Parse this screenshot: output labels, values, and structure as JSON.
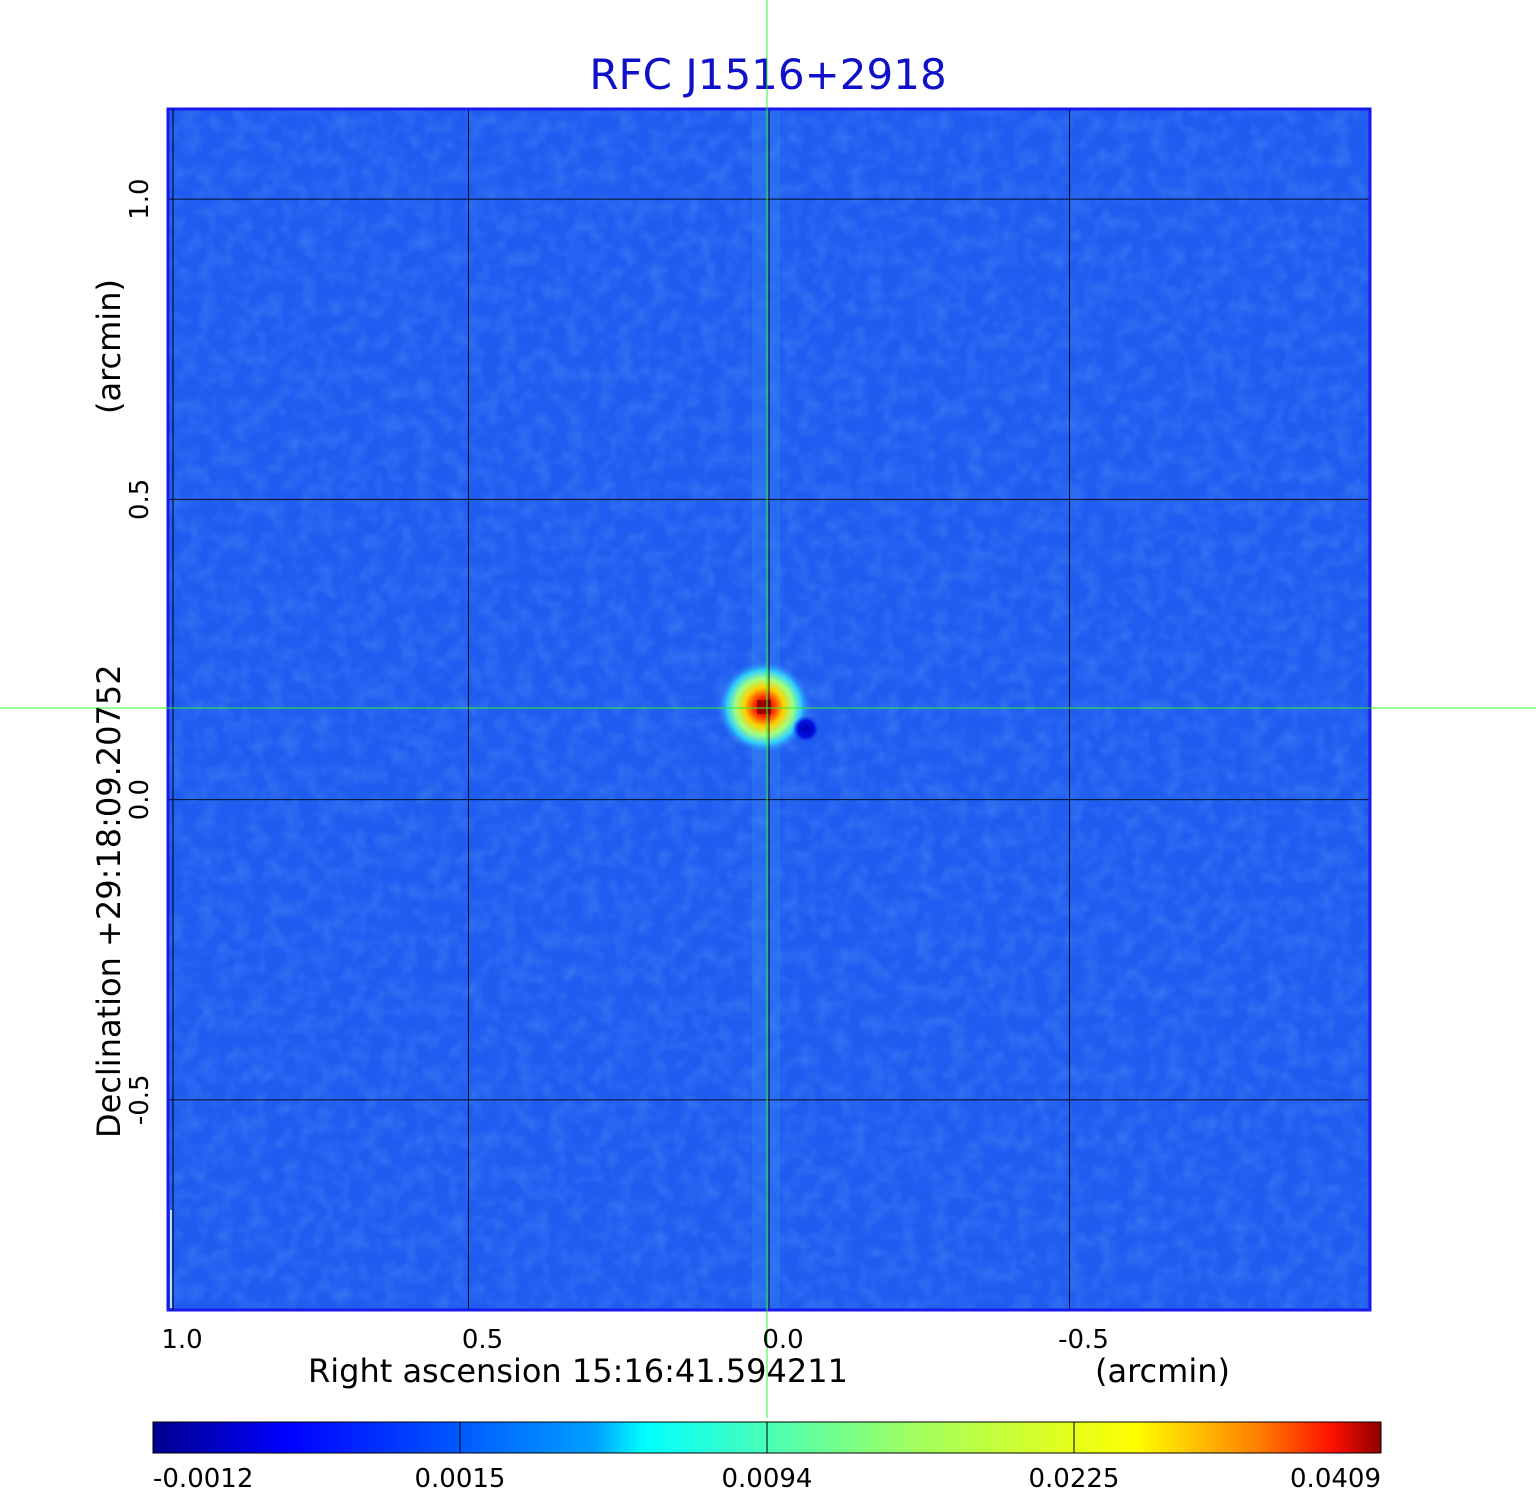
{
  "title": "RFC J1516+2918",
  "chart_data": {
    "type": "heatmap",
    "title": "RFC J1516+2918",
    "xlabel": "Right ascension  15:16:41.594211",
    "xlabel_unit": "(arcmin)",
    "ylabel": "Declination  +29:18:09.20752",
    "ylabel_unit": "(arcmin)",
    "x_ticks": [
      1.0,
      0.5,
      0.0,
      -0.5
    ],
    "x_tick_labels": [
      "1.0",
      "0.5",
      "0.0",
      "-0.5"
    ],
    "y_ticks": [
      1.0,
      0.5,
      0.0,
      -0.5
    ],
    "y_tick_labels": [
      "1.0",
      "0.5",
      "0.0",
      "-0.5"
    ],
    "xlim": [
      1.0,
      -1.0
    ],
    "ylim": [
      -0.85,
      1.15
    ],
    "grid": true,
    "crosshair": {
      "ra_offset": 0.0,
      "dec_offset": 0.158
    },
    "source_peak": {
      "x": 0.01,
      "y": 0.16,
      "value": 0.0409
    },
    "negative_sidelobe": {
      "x": -0.06,
      "y": 0.12,
      "value": -0.0012
    },
    "colorbar": {
      "colormap": "jet",
      "tick_labels": [
        "-0.0012",
        "0.0015",
        "0.0094",
        "0.0225",
        "0.0409"
      ],
      "min": -0.0012,
      "max": 0.0409
    },
    "colors": {
      "title": "#1010c8",
      "crosshair": "#33ee33",
      "frame": "#1a1aee",
      "background_field": "#1f5cf0"
    }
  }
}
